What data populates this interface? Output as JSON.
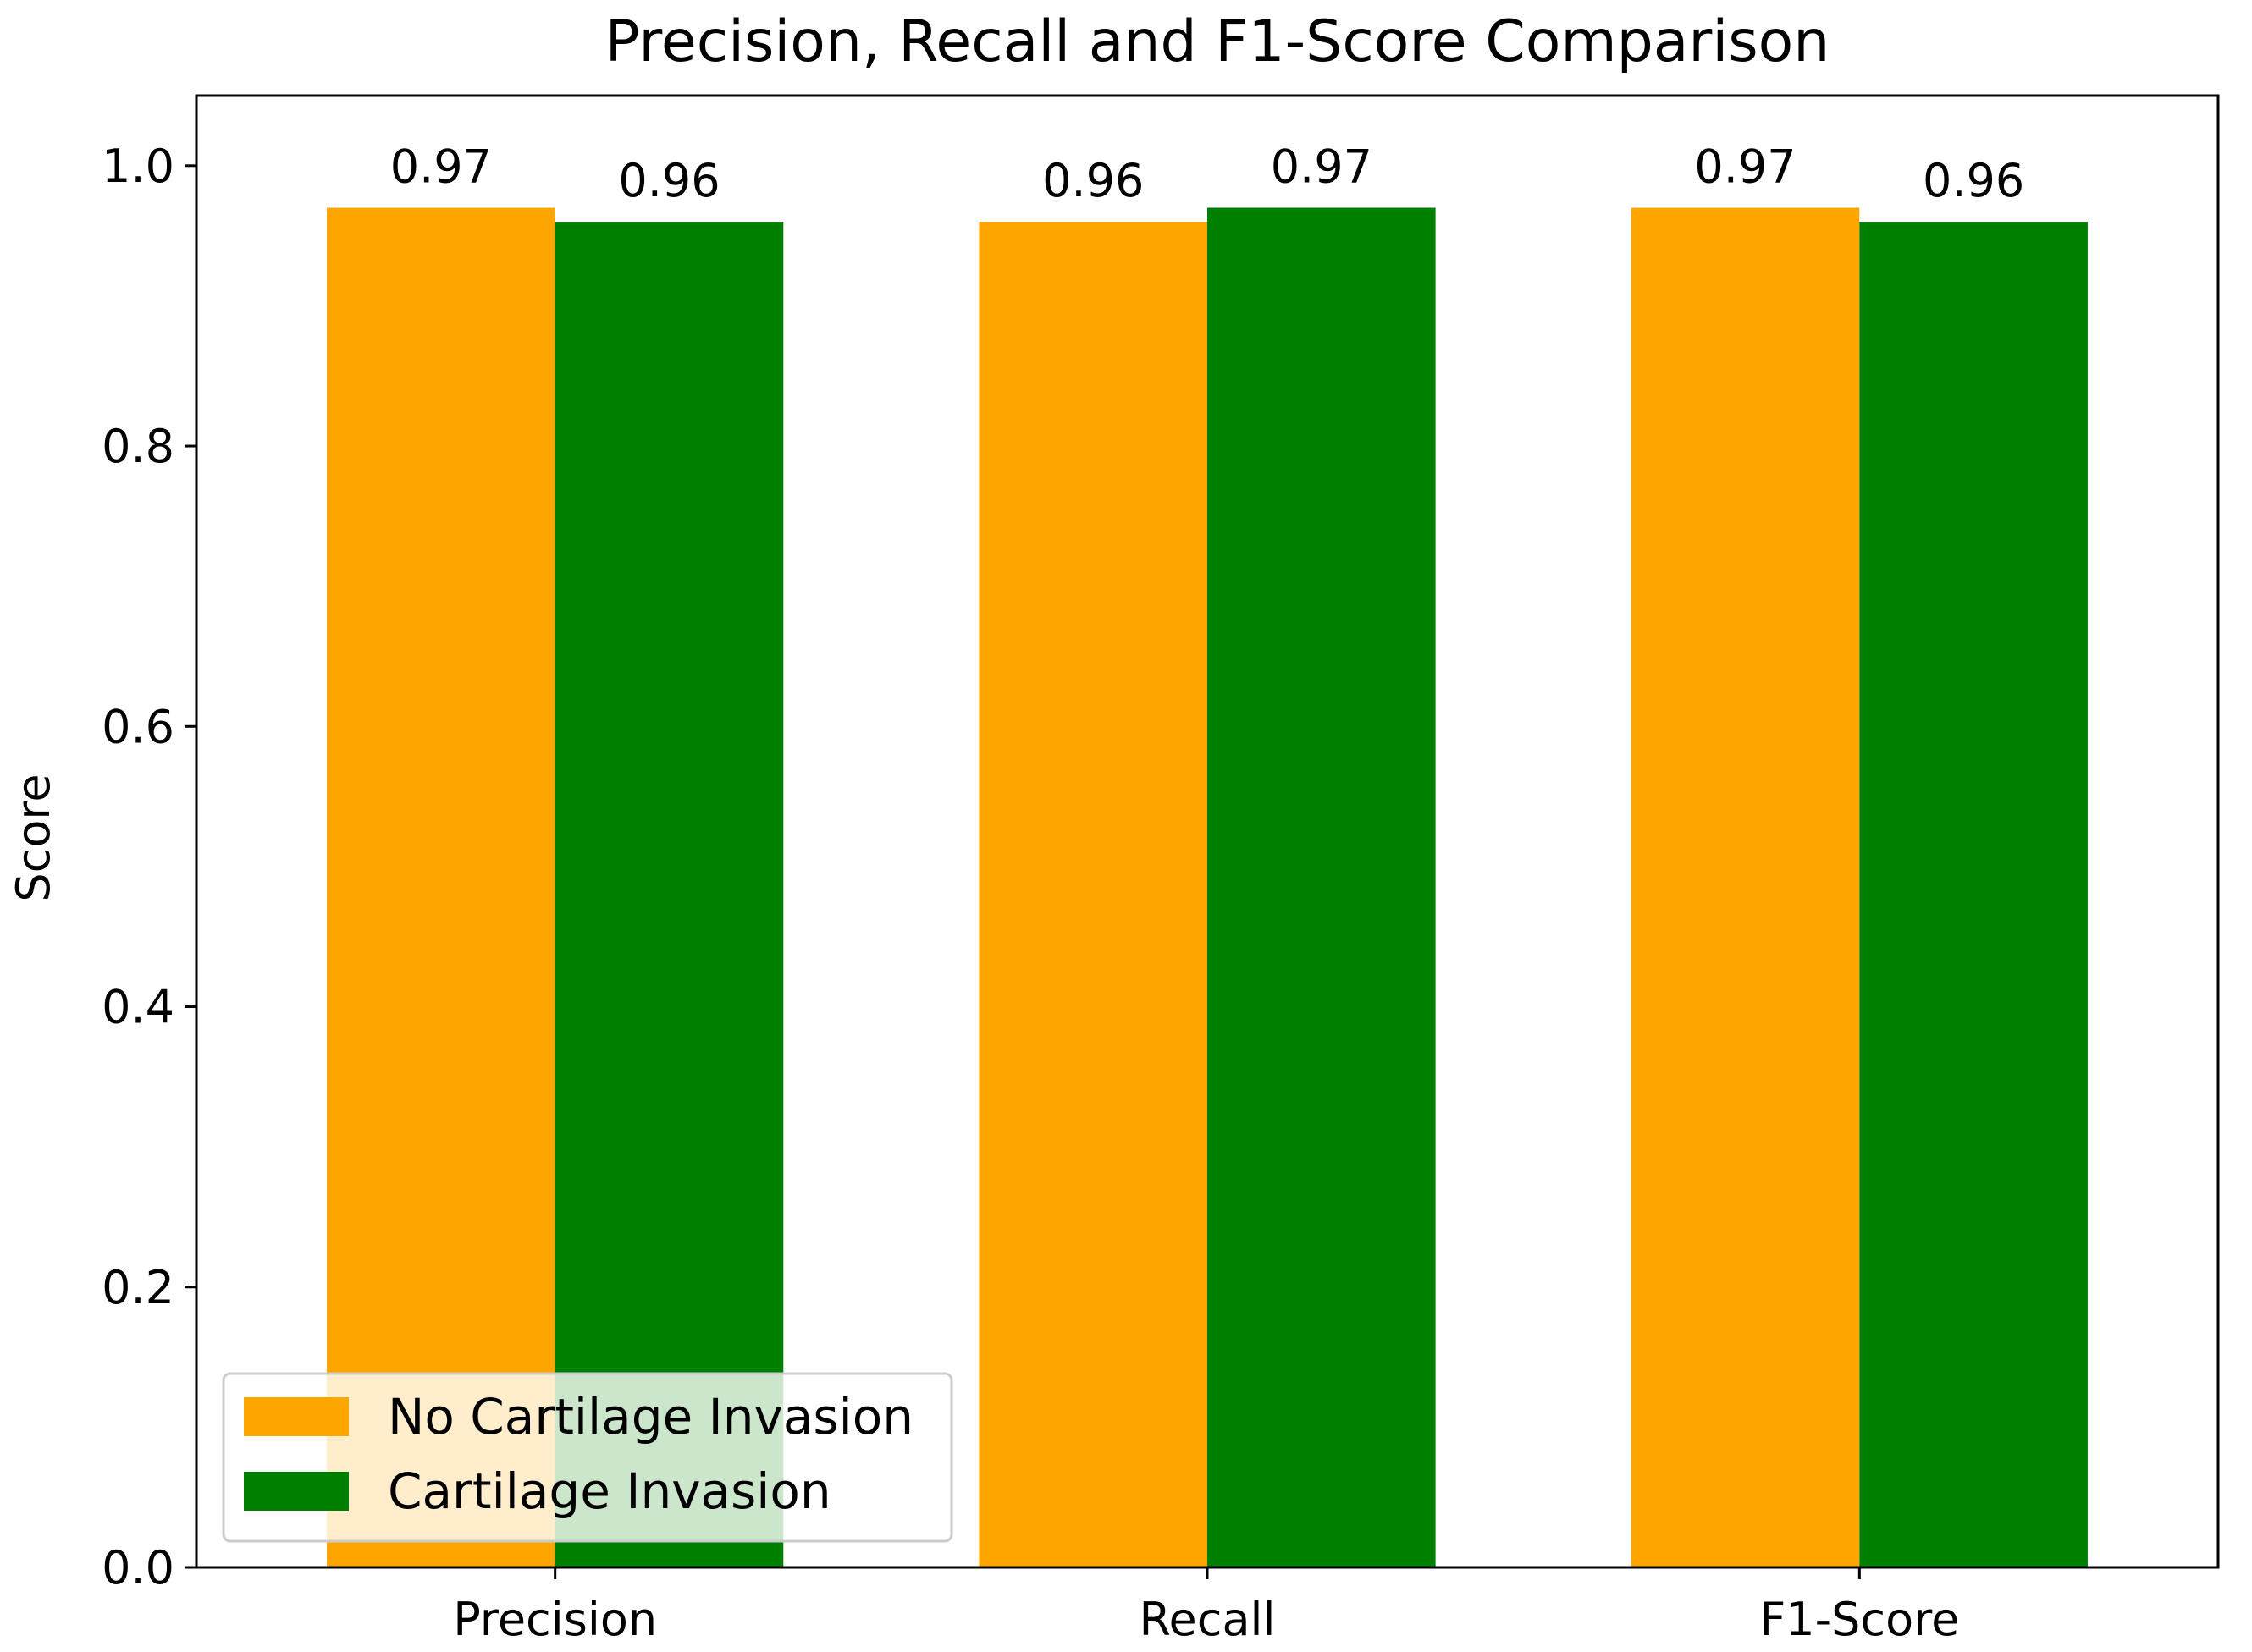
{
  "chart_data": {
    "type": "bar",
    "title": "Precision, Recall and F1-Score Comparison",
    "xlabel": "",
    "ylabel": "Score",
    "categories": [
      "Precision",
      "Recall",
      "F1-Score"
    ],
    "series": [
      {
        "name": "No Cartilage Invasion",
        "color": "#FFA500",
        "values": [
          0.97,
          0.96,
          0.97
        ],
        "labels": [
          "0.97",
          "0.96",
          "0.97"
        ]
      },
      {
        "name": "Cartilage Invasion",
        "color": "#008000",
        "values": [
          0.96,
          0.97,
          0.96
        ],
        "labels": [
          "0.96",
          "0.97",
          "0.96"
        ]
      }
    ],
    "ylim": [
      0,
      1.05
    ],
    "yticks": [
      0.0,
      0.2,
      0.4,
      0.6,
      0.8,
      1.0
    ],
    "ytick_labels": [
      "0.0",
      "0.2",
      "0.4",
      "0.6",
      "0.8",
      "1.0"
    ],
    "legend_position": "lower-left",
    "grid": false
  }
}
